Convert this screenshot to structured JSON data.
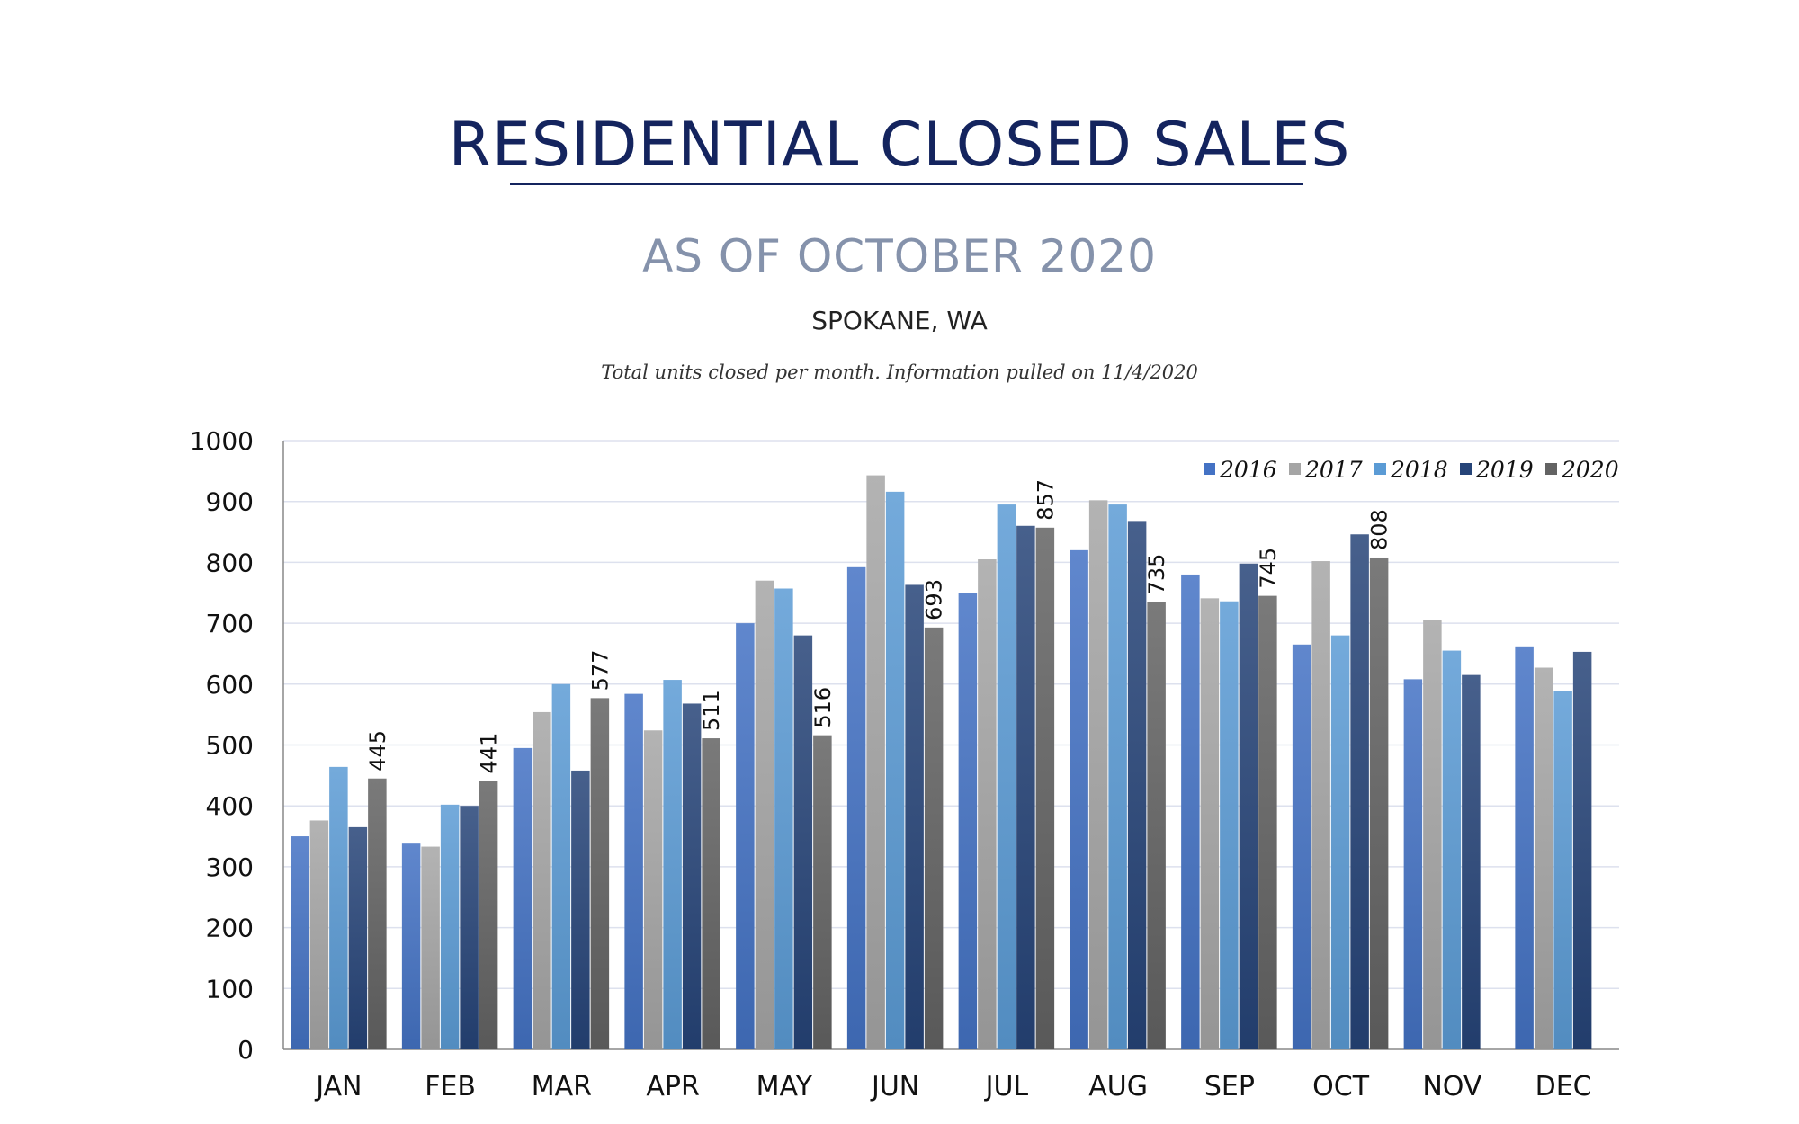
{
  "header": {
    "title": "RESIDENTIAL CLOSED SALES",
    "subtitle": "AS OF OCTOBER 2020",
    "location": "SPOKANE, WA",
    "note": "Total units closed per month.  Information pulled on 11/4/2020"
  },
  "chart_data": {
    "type": "bar",
    "title": "RESIDENTIAL CLOSED SALES",
    "categories": [
      "JAN",
      "FEB",
      "MAR",
      "APR",
      "MAY",
      "JUN",
      "JUL",
      "AUG",
      "SEP",
      "OCT",
      "NOV",
      "DEC"
    ],
    "ylim": [
      0,
      1000
    ],
    "yticks": [
      0,
      100,
      200,
      300,
      400,
      500,
      600,
      700,
      800,
      900,
      1000
    ],
    "grid": true,
    "legend_position": "top-right",
    "series": [
      {
        "name": "2016",
        "color": "#4472c4",
        "values": [
          350,
          338,
          495,
          584,
          700,
          792,
          750,
          820,
          780,
          665,
          608,
          662
        ]
      },
      {
        "name": "2017",
        "color": "#a5a5a5",
        "values": [
          376,
          333,
          554,
          524,
          770,
          943,
          805,
          902,
          741,
          802,
          705,
          627
        ]
      },
      {
        "name": "2018",
        "color": "#5b9bd5",
        "values": [
          464,
          402,
          600,
          607,
          757,
          916,
          895,
          895,
          736,
          680,
          655,
          588
        ]
      },
      {
        "name": "2019",
        "color": "#264478",
        "values": [
          365,
          400,
          458,
          568,
          680,
          763,
          860,
          868,
          798,
          846,
          615,
          653
        ]
      },
      {
        "name": "2020",
        "color": "#636363",
        "values": [
          445,
          441,
          577,
          511,
          516,
          693,
          857,
          735,
          745,
          808,
          null,
          null
        ],
        "data_labels": true
      }
    ]
  }
}
